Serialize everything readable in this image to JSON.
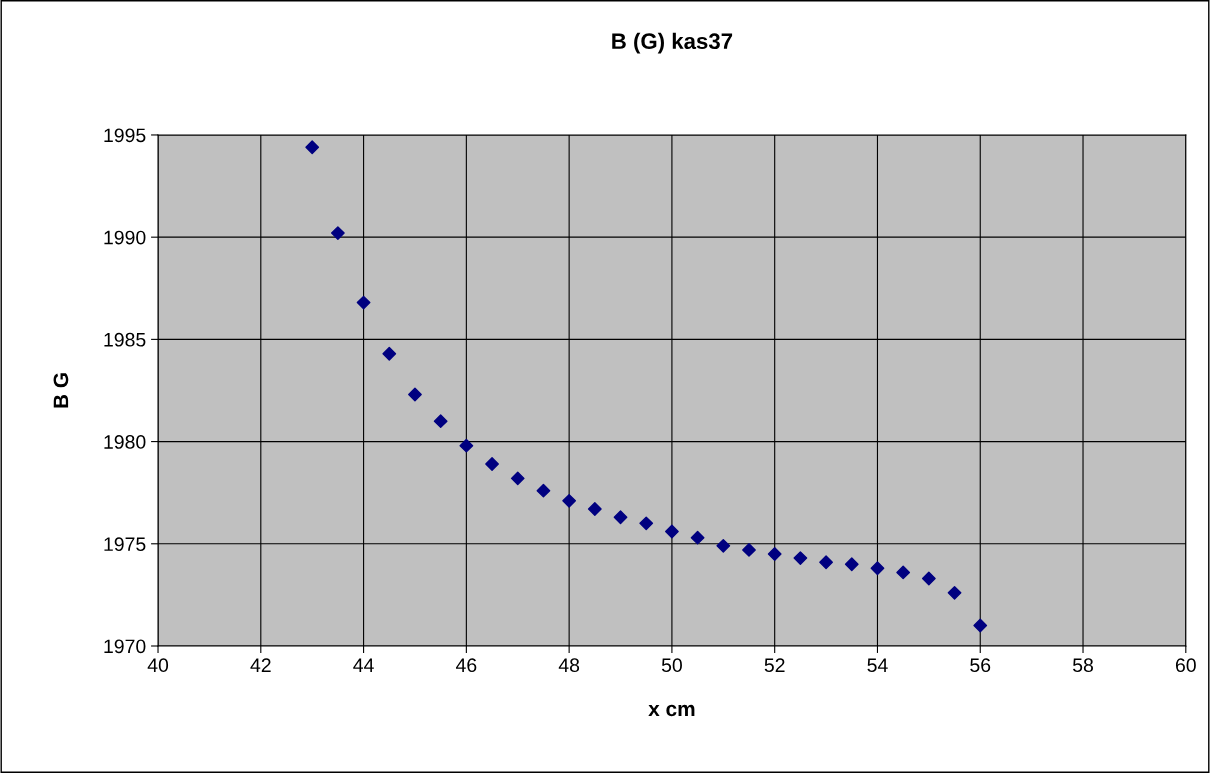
{
  "chart_data": {
    "type": "scatter",
    "title": "B (G) kas37",
    "xlabel": "x cm",
    "ylabel": "B G",
    "x": [
      43,
      43.5,
      44,
      44.5,
      45,
      45.5,
      46,
      46.5,
      47,
      47.5,
      48,
      48.5,
      49,
      49.5,
      50,
      50.5,
      51,
      51.5,
      52,
      52.5,
      53,
      53.5,
      54,
      54.5,
      55,
      55.5,
      56
    ],
    "series": [
      {
        "color": "#000080",
        "values": [
          1994.4,
          1990.2,
          1986.8,
          1984.3,
          1982.3,
          1981.0,
          1979.8,
          1978.9,
          1978.2,
          1977.6,
          1977.1,
          1976.7,
          1976.3,
          1976.0,
          1975.6,
          1975.3,
          1974.9,
          1974.7,
          1974.5,
          1974.3,
          1974.1,
          1974.0,
          1973.8,
          1973.6,
          1973.3,
          1972.6,
          1971.0
        ]
      }
    ],
    "xlim": [
      40,
      60
    ],
    "xticks": [
      40,
      42,
      44,
      46,
      48,
      50,
      52,
      54,
      56,
      58,
      60
    ],
    "ylim": [
      1970,
      1995
    ],
    "yticks": [
      1970,
      1975,
      1980,
      1985,
      1990,
      1995
    ],
    "grid": true,
    "marker": "diamond",
    "legend": false
  }
}
